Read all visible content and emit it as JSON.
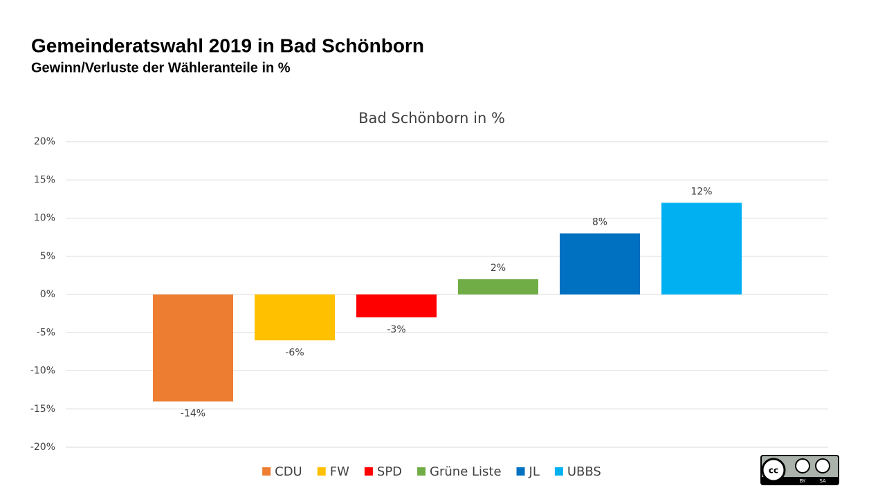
{
  "header": {
    "title": "Gemeinderatswahl 2019 in Bad Schönborn",
    "subtitle": "Gewinn/Verluste der Wähleranteile in %"
  },
  "chart_data": {
    "type": "bar",
    "title": "Bad Schönborn in %",
    "categories": [
      "CDU",
      "FW",
      "SPD",
      "Grüne Liste",
      "JL",
      "UBBS"
    ],
    "values": [
      -14,
      -6,
      -3,
      2,
      8,
      12
    ],
    "value_labels": [
      "-14%",
      "-6%",
      "-3%",
      "2%",
      "8%",
      "12%"
    ],
    "colors": [
      "#ed7d31",
      "#ffc000",
      "#ff0000",
      "#70ad47",
      "#0070c0",
      "#00b0f0"
    ],
    "ylim": [
      -20,
      20
    ],
    "yticks": [
      {
        "value": -20,
        "label": "-20%"
      },
      {
        "value": -15,
        "label": "-15%"
      },
      {
        "value": -10,
        "label": "-10%"
      },
      {
        "value": -5,
        "label": "-5%"
      },
      {
        "value": 0,
        "label": "0%"
      },
      {
        "value": 5,
        "label": "5%"
      },
      {
        "value": 10,
        "label": "10%"
      },
      {
        "value": 15,
        "label": "15%"
      },
      {
        "value": 20,
        "label": "20%"
      }
    ],
    "grid": true,
    "legend": "bottom"
  },
  "license": {
    "logo": "cc",
    "by": "BY",
    "sa": "SA"
  }
}
